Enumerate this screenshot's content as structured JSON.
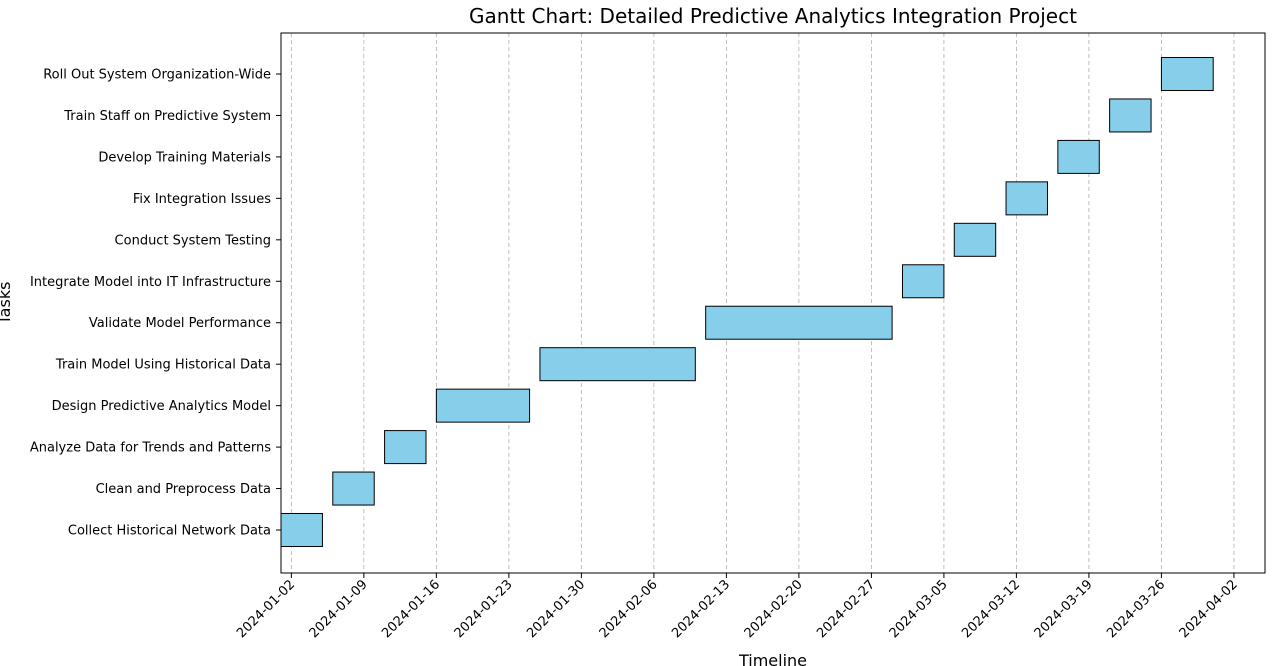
{
  "chart_data": {
    "type": "gantt",
    "title": "Gantt Chart: Detailed Predictive Analytics Integration Project",
    "xlabel": "Timeline",
    "ylabel": "Tasks",
    "xlim": [
      "2024-01-01",
      "2024-04-05"
    ],
    "x_ticks": [
      "2024-01-02",
      "2024-01-09",
      "2024-01-16",
      "2024-01-23",
      "2024-01-30",
      "2024-02-06",
      "2024-02-13",
      "2024-02-20",
      "2024-02-27",
      "2024-03-05",
      "2024-03-12",
      "2024-03-19",
      "2024-03-26",
      "2024-04-02"
    ],
    "grid": "x-axis dashed",
    "bar_color": "#87CEEB",
    "edge_color": "#000000",
    "tasks": [
      {
        "task": "Collect Historical Network Data",
        "start": "2024-01-01",
        "end": "2024-01-05"
      },
      {
        "task": "Clean and Preprocess Data",
        "start": "2024-01-06",
        "end": "2024-01-10"
      },
      {
        "task": "Analyze Data for Trends and Patterns",
        "start": "2024-01-11",
        "end": "2024-01-15"
      },
      {
        "task": "Design Predictive Analytics Model",
        "start": "2024-01-16",
        "end": "2024-01-25"
      },
      {
        "task": "Train Model Using Historical Data",
        "start": "2024-01-26",
        "end": "2024-02-10"
      },
      {
        "task": "Validate Model Performance",
        "start": "2024-02-11",
        "end": "2024-02-29"
      },
      {
        "task": "Integrate Model into IT Infrastructure",
        "start": "2024-03-01",
        "end": "2024-03-05"
      },
      {
        "task": "Conduct System Testing",
        "start": "2024-03-06",
        "end": "2024-03-10"
      },
      {
        "task": "Fix Integration Issues",
        "start": "2024-03-11",
        "end": "2024-03-15"
      },
      {
        "task": "Develop Training Materials",
        "start": "2024-03-16",
        "end": "2024-03-20"
      },
      {
        "task": "Train Staff on Predictive System",
        "start": "2024-03-21",
        "end": "2024-03-25"
      },
      {
        "task": "Roll Out System Organization-Wide",
        "start": "2024-03-26",
        "end": "2024-03-31"
      }
    ]
  }
}
